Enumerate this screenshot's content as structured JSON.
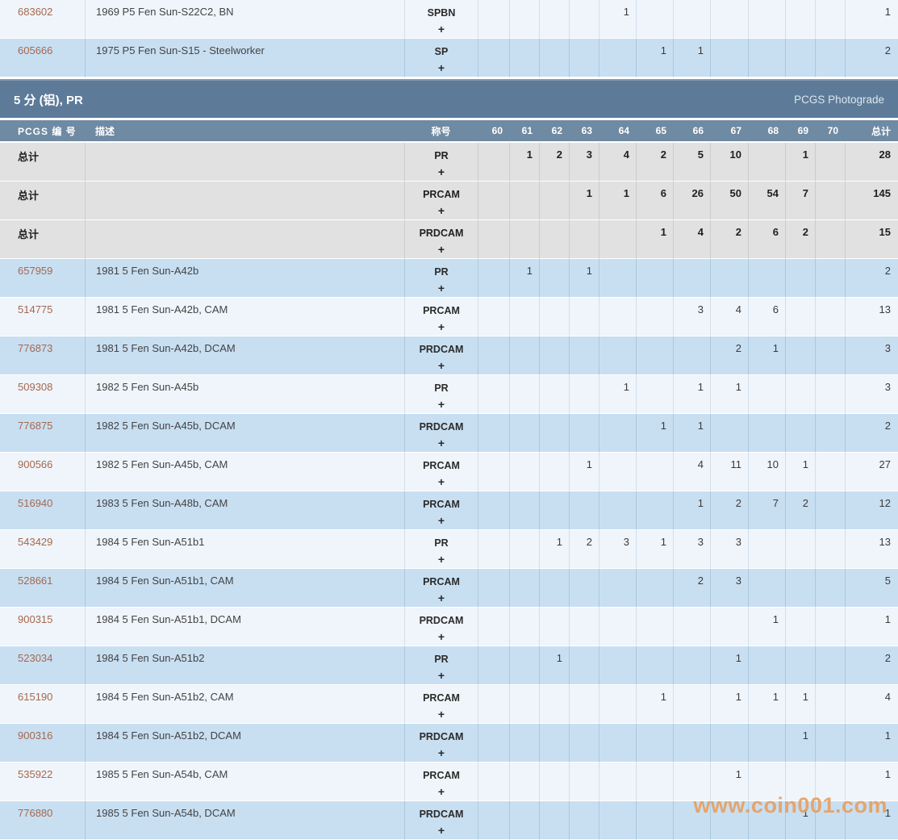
{
  "columns": {
    "id_label": "PCGS 编 号",
    "desc_label": "描述",
    "designation_label": "称号",
    "grades": [
      "60",
      "61",
      "62",
      "63",
      "64",
      "65",
      "66",
      "67",
      "68",
      "69",
      "70"
    ],
    "total_label": "总计"
  },
  "top_section": {
    "rows": [
      {
        "id": "683602",
        "desc": "1969 P5 Fen Sun-S22C2, BN",
        "designation": "SPBN",
        "plus": "+",
        "counts": {
          "64": "1"
        },
        "total": "1",
        "shade": "light"
      },
      {
        "id": "605666",
        "desc": "1975 P5 Fen Sun-S15 - Steelworker",
        "designation": "SP",
        "plus": "+",
        "counts": {
          "65": "1",
          "66": "1"
        },
        "total": "2",
        "shade": "blue"
      }
    ]
  },
  "section_header": {
    "title": "5 分 (铝), PR",
    "right_link": "PCGS Photograde"
  },
  "pr_section": {
    "summary_rows": [
      {
        "label": "总计",
        "designation": "PR",
        "plus": "+",
        "counts": {
          "61": "1",
          "62": "2",
          "63": "3",
          "64": "4",
          "65": "2",
          "66": "5",
          "67": "10",
          "69": "1"
        },
        "total": "28"
      },
      {
        "label": "总计",
        "designation": "PRCAM",
        "plus": "+",
        "counts": {
          "63": "1",
          "64": "1",
          "65": "6",
          "66": "26",
          "67": "50",
          "68": "54",
          "69": "7"
        },
        "total": "145"
      },
      {
        "label": "总计",
        "designation": "PRDCAM",
        "plus": "+",
        "counts": {
          "65": "1",
          "66": "4",
          "67": "2",
          "68": "6",
          "69": "2"
        },
        "total": "15"
      }
    ],
    "rows": [
      {
        "id": "657959",
        "desc": "1981 5 Fen Sun-A42b",
        "designation": "PR",
        "plus": "+",
        "counts": {
          "61": "1",
          "63": "1"
        },
        "total": "2",
        "shade": "blue"
      },
      {
        "id": "514775",
        "desc": "1981 5 Fen Sun-A42b, CAM",
        "designation": "PRCAM",
        "plus": "+",
        "counts": {
          "66": "3",
          "67": "4",
          "68": "6"
        },
        "total": "13",
        "shade": "light"
      },
      {
        "id": "776873",
        "desc": "1981 5 Fen Sun-A42b, DCAM",
        "designation": "PRDCAM",
        "plus": "+",
        "counts": {
          "67": "2",
          "68": "1"
        },
        "total": "3",
        "shade": "blue"
      },
      {
        "id": "509308",
        "desc": "1982 5 Fen Sun-A45b",
        "designation": "PR",
        "plus": "+",
        "counts": {
          "64": "1",
          "66": "1",
          "67": "1"
        },
        "total": "3",
        "shade": "light"
      },
      {
        "id": "776875",
        "desc": "1982 5 Fen Sun-A45b, DCAM",
        "designation": "PRDCAM",
        "plus": "+",
        "counts": {
          "65": "1",
          "66": "1"
        },
        "total": "2",
        "shade": "blue"
      },
      {
        "id": "900566",
        "desc": "1982 5 Fen Sun-A45b, CAM",
        "designation": "PRCAM",
        "plus": "+",
        "counts": {
          "63": "1",
          "66": "4",
          "67": "11",
          "68": "10",
          "69": "1"
        },
        "total": "27",
        "shade": "light"
      },
      {
        "id": "516940",
        "desc": "1983 5 Fen Sun-A48b, CAM",
        "designation": "PRCAM",
        "plus": "+",
        "counts": {
          "66": "1",
          "67": "2",
          "68": "7",
          "69": "2"
        },
        "total": "12",
        "shade": "blue"
      },
      {
        "id": "543429",
        "desc": "1984 5 Fen Sun-A51b1",
        "designation": "PR",
        "plus": "+",
        "counts": {
          "62": "1",
          "63": "2",
          "64": "3",
          "65": "1",
          "66": "3",
          "67": "3"
        },
        "total": "13",
        "shade": "light"
      },
      {
        "id": "528661",
        "desc": "1984 5 Fen Sun-A51b1, CAM",
        "designation": "PRCAM",
        "plus": "+",
        "counts": {
          "66": "2",
          "67": "3"
        },
        "total": "5",
        "shade": "blue"
      },
      {
        "id": "900315",
        "desc": "1984 5 Fen Sun-A51b1, DCAM",
        "designation": "PRDCAM",
        "plus": "+",
        "counts": {
          "68": "1"
        },
        "total": "1",
        "shade": "light"
      },
      {
        "id": "523034",
        "desc": "1984 5 Fen Sun-A51b2",
        "designation": "PR",
        "plus": "+",
        "counts": {
          "62": "1",
          "67": "1"
        },
        "total": "2",
        "shade": "blue"
      },
      {
        "id": "615190",
        "desc": "1984 5 Fen Sun-A51b2, CAM",
        "designation": "PRCAM",
        "plus": "+",
        "counts": {
          "65": "1",
          "67": "1",
          "68": "1",
          "69": "1"
        },
        "total": "4",
        "shade": "light"
      },
      {
        "id": "900316",
        "desc": "1984 5 Fen Sun-A51b2, DCAM",
        "designation": "PRDCAM",
        "plus": "+",
        "counts": {
          "69": "1"
        },
        "total": "1",
        "shade": "blue"
      },
      {
        "id": "535922",
        "desc": "1985 5 Fen Sun-A54b, CAM",
        "designation": "PRCAM",
        "plus": "+",
        "counts": {
          "67": "1"
        },
        "total": "1",
        "shade": "light"
      },
      {
        "id": "776880",
        "desc": "1985 5 Fen Sun-A54b, DCAM",
        "designation": "PRDCAM",
        "plus": "+",
        "counts": {
          "69": "1"
        },
        "total": "1",
        "shade": "blue"
      }
    ]
  },
  "watermark": {
    "text": "www.coin001.com"
  },
  "colors": {
    "bar-bg": "#5d7b99",
    "head-bg": "#6f8aa3",
    "row-blue": "#c8dff2",
    "row-light": "#eff5fb",
    "row-gray": "#e1e1e1",
    "link": "#a5684f",
    "wm": "#e6a163"
  }
}
